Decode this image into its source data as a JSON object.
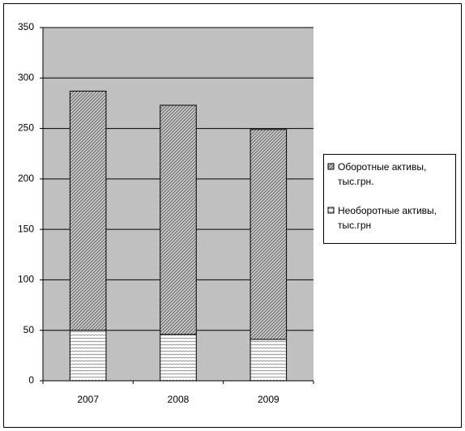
{
  "chart_data": {
    "type": "stacked-bar",
    "categories": [
      "2007",
      "2008",
      "2009"
    ],
    "series": [
      {
        "name": "Оборотные активы, тыс.грн.",
        "values": [
          237,
          227,
          208
        ]
      },
      {
        "name": "Необоротные активы, тыс.грн",
        "values": [
          50,
          46,
          41
        ]
      }
    ],
    "ylim": [
      0,
      350
    ],
    "yticks": [
      0,
      50,
      100,
      150,
      200,
      250,
      300,
      350
    ],
    "grid": true,
    "legend": "right"
  }
}
